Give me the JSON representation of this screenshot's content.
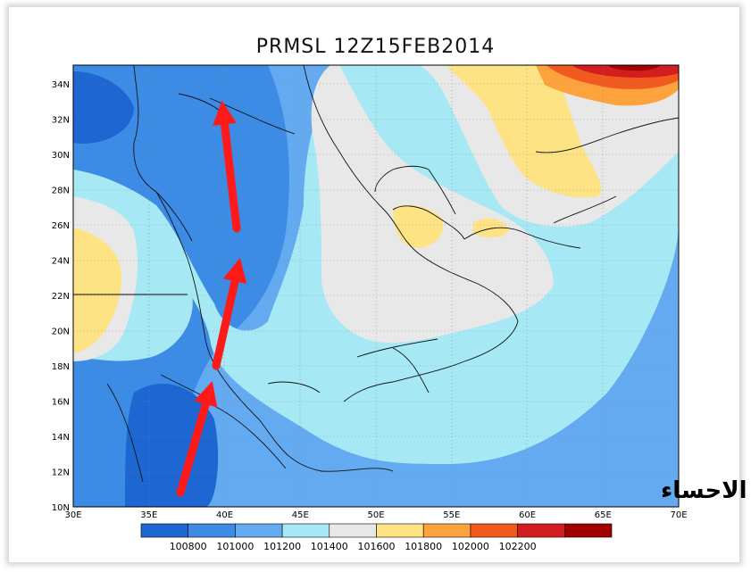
{
  "title": "PRMSL 12Z15FEB2014",
  "map": {
    "lon_labels": [
      "30E",
      "35E",
      "40E",
      "45E",
      "50E",
      "55E",
      "60E",
      "65E",
      "70E"
    ],
    "lat_labels": [
      "34N",
      "32N",
      "30N",
      "28N",
      "26N",
      "24N",
      "22N",
      "20N",
      "18N",
      "16N",
      "14N",
      "12N",
      "10N"
    ],
    "watermark": "براري الاحساء"
  },
  "colorbar": {
    "labels": [
      "100800",
      "101000",
      "101200",
      "101400",
      "101600",
      "101800",
      "102000",
      "102200"
    ],
    "colors": [
      "#1e66d2",
      "#3c8ce6",
      "#64aaf0",
      "#a6e8f4",
      "#e8e8e8",
      "#fde384",
      "#fda23c",
      "#f05a1e",
      "#d21e1e",
      "#a00000"
    ]
  },
  "annotations": {
    "arrow_color": "#ff1a1a",
    "arrow_count": 3
  }
}
